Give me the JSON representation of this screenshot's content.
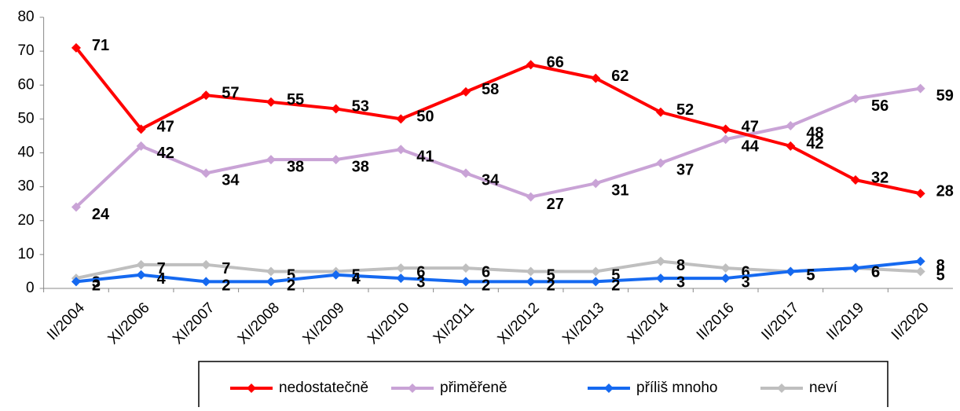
{
  "chart_data": {
    "type": "line",
    "categories": [
      "II/2004",
      "XI/2006",
      "XI/2007",
      "XI/2008",
      "XI/2009",
      "XI/2010",
      "XI/2011",
      "XI/2012",
      "XI/2013",
      "XI/2014",
      "II/2016",
      "II/2017",
      "II/2019",
      "II/2020"
    ],
    "series": [
      {
        "name": "nedostatečně",
        "color": "#ff0000",
        "values": [
          71,
          47,
          57,
          55,
          53,
          50,
          58,
          66,
          62,
          52,
          47,
          42,
          32,
          28
        ]
      },
      {
        "name": "přiměřeně",
        "color": "#c9a3d6",
        "values": [
          24,
          42,
          34,
          38,
          38,
          41,
          34,
          27,
          31,
          37,
          44,
          48,
          56,
          59
        ]
      },
      {
        "name": "příliš mnoho",
        "color": "#1569f0",
        "values": [
          2,
          4,
          2,
          2,
          4,
          3,
          2,
          2,
          2,
          3,
          3,
          5,
          6,
          8
        ]
      },
      {
        "name": "neví",
        "color": "#bfbfbf",
        "values": [
          3,
          7,
          7,
          5,
          5,
          6,
          6,
          5,
          5,
          8,
          6,
          5,
          6,
          5
        ]
      }
    ],
    "ylim": [
      0,
      80
    ],
    "yticks": [
      0,
      10,
      20,
      30,
      40,
      50,
      60,
      70,
      80
    ],
    "legend": "bottom"
  }
}
